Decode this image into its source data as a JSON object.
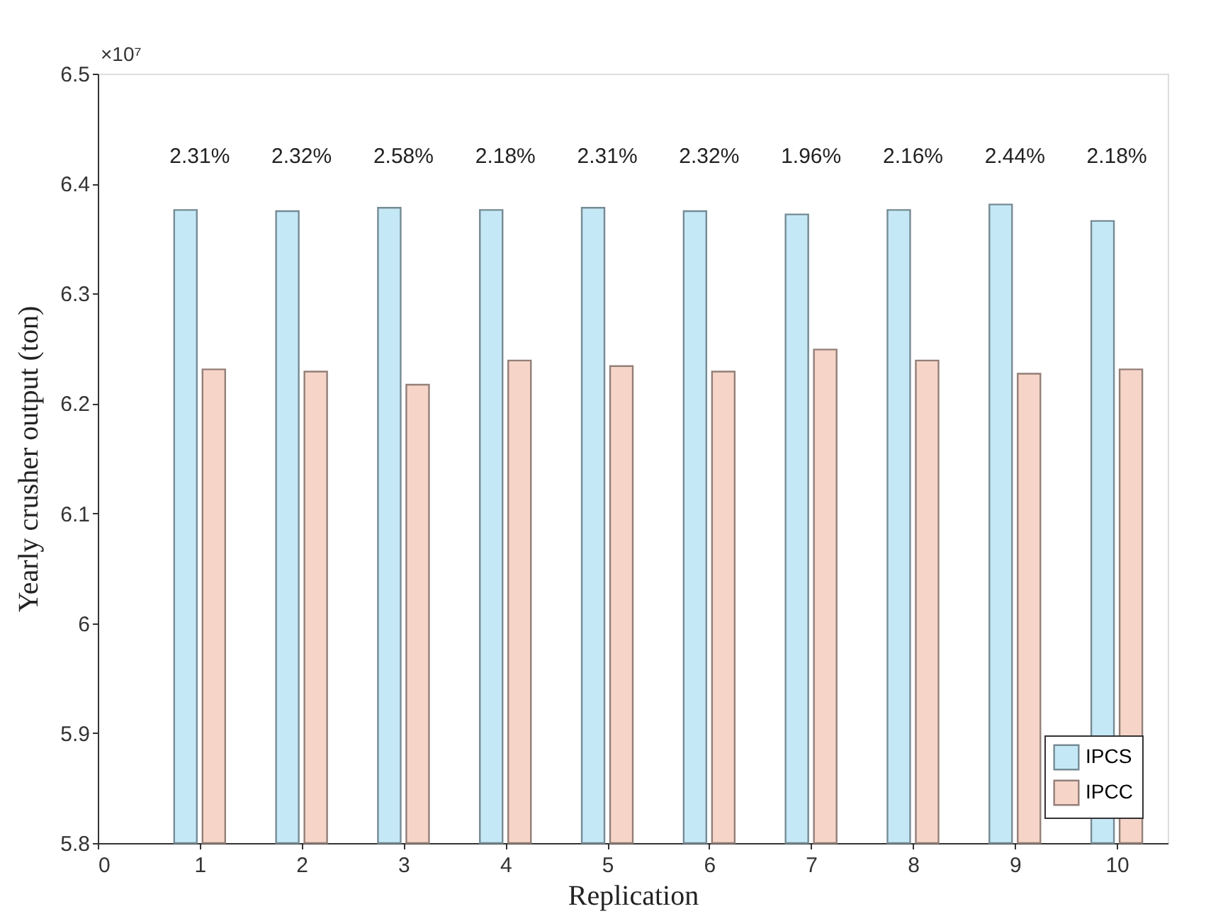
{
  "chart_data": {
    "type": "bar",
    "xlabel": "Replication",
    "ylabel": "Yearly crusher output (ton)",
    "x": [
      1,
      2,
      3,
      4,
      5,
      6,
      7,
      8,
      9,
      10
    ],
    "series": [
      {
        "name": "IPCS",
        "color": "#c5e8f7",
        "values": [
          6.376,
          6.375,
          6.378,
          6.376,
          6.378,
          6.375,
          6.372,
          6.376,
          6.381,
          6.366
        ]
      },
      {
        "name": "IPCC",
        "color": "#f6d5c8",
        "values": [
          6.231,
          6.229,
          6.217,
          6.239,
          6.234,
          6.229,
          6.249,
          6.239,
          6.227,
          6.231
        ]
      }
    ],
    "annotations": [
      "2.31%",
      "2.32%",
      "2.58%",
      "2.18%",
      "2.31%",
      "2.32%",
      "1.96%",
      "2.16%",
      "2.44%",
      "2.18%",
      "×10⁷"
    ],
    "xlim": [
      0,
      10.5
    ],
    "xticks": [
      0,
      1,
      2,
      3,
      4,
      5,
      6,
      7,
      8,
      9,
      10
    ],
    "ylim": [
      5.8,
      6.5
    ],
    "yticks": [
      5.8,
      5.9,
      6,
      6.1,
      6.2,
      6.3,
      6.4,
      6.5
    ],
    "grid": false,
    "legend": "bottom right"
  }
}
